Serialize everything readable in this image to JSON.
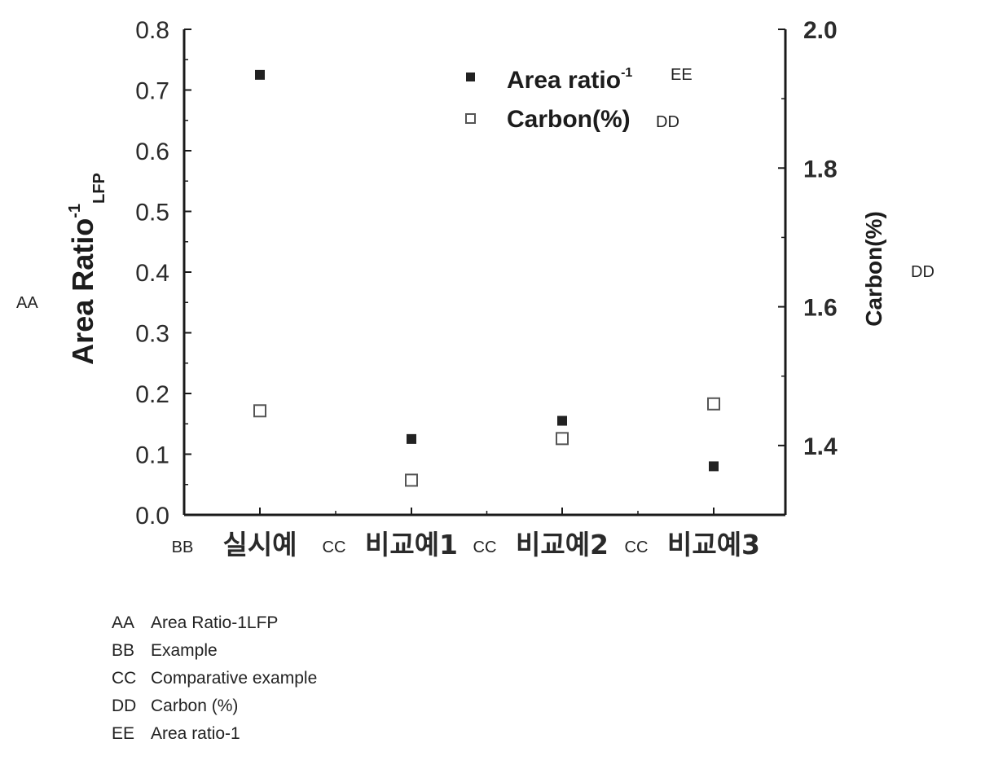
{
  "chart_data": {
    "type": "scatter",
    "categories": [
      "실시예",
      "비교예1",
      "비교예2",
      "비교예3"
    ],
    "category_codes": [
      "BB",
      "CC",
      "CC",
      "CC"
    ],
    "series": [
      {
        "name": "Area ratio-1",
        "axis": "left",
        "marker": "filled-square",
        "code": "EE",
        "values": [
          0.725,
          0.125,
          0.155,
          0.08
        ]
      },
      {
        "name": "Carbon(%)",
        "axis": "right",
        "marker": "open-square",
        "code": "DD",
        "values": [
          1.45,
          1.35,
          1.41,
          1.46
        ]
      }
    ],
    "y_left": {
      "label_main": "Area Ratio",
      "label_sup": "-1",
      "label_sub": "LFP",
      "code": "AA",
      "range": [
        0.0,
        0.8
      ],
      "ticks": [
        "0.0",
        "0.1",
        "0.2",
        "0.3",
        "0.4",
        "0.5",
        "0.6",
        "0.7",
        "0.8"
      ]
    },
    "y_right": {
      "label": "Carbon(%)",
      "code": "DD",
      "range": [
        1.3,
        2.0
      ],
      "ticks": [
        "1.4",
        "1.6",
        "1.8",
        "2.0"
      ]
    },
    "legend": {
      "placement": "top-right",
      "items": [
        {
          "text": "Area ratio",
          "sup": "-1",
          "code": "EE"
        },
        {
          "text": "Carbon(%)",
          "sup": "",
          "code": "DD"
        }
      ]
    },
    "grid": false
  },
  "glossary": [
    {
      "code": "AA",
      "meaning": "Area Ratio-1LFP"
    },
    {
      "code": "BB",
      "meaning": "Example"
    },
    {
      "code": "CC",
      "meaning": "Comparative example"
    },
    {
      "code": "DD",
      "meaning": "Carbon (%)"
    },
    {
      "code": "EE",
      "meaning": "Area ratio-1"
    }
  ],
  "colors": {
    "axis": "#1a1a1a",
    "marker": "#222222",
    "open_marker_stroke": "#555555"
  }
}
